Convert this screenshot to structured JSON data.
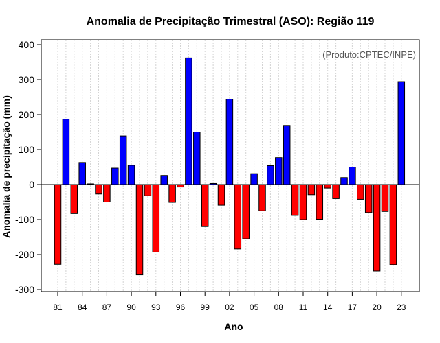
{
  "chart_data": {
    "type": "bar",
    "title": "Anomalia de Precipitação Trimestral (ASO): Região 119",
    "xlabel": "Ano",
    "ylabel": "Anomalia de precipitação (mm)",
    "annotation": "(Produto:CPTEC/INPE)",
    "ylim": [
      -310,
      415
    ],
    "yticks": [
      -300,
      -200,
      -100,
      0,
      100,
      200,
      300,
      400
    ],
    "xtick_labels": [
      "81",
      "84",
      "87",
      "90",
      "93",
      "96",
      "99",
      "02",
      "05",
      "08",
      "11",
      "14",
      "17",
      "20",
      "23"
    ],
    "positive_color": "#0000ff",
    "negative_color": "#ff0000",
    "categories": [
      1981,
      1982,
      1983,
      1984,
      1985,
      1986,
      1987,
      1988,
      1989,
      1990,
      1991,
      1992,
      1993,
      1994,
      1995,
      1996,
      1997,
      1998,
      1999,
      2000,
      2001,
      2002,
      2003,
      2004,
      2005,
      2006,
      2007,
      2008,
      2009,
      2010,
      2011,
      2012,
      2013,
      2014,
      2015,
      2016,
      2017,
      2018,
      2019,
      2020,
      2021,
      2022,
      2023
    ],
    "values": [
      -228,
      187,
      -83,
      63,
      2,
      -27,
      -50,
      47,
      139,
      55,
      -258,
      -32,
      -193,
      26,
      -51,
      -7,
      362,
      150,
      -120,
      3,
      -59,
      244,
      -184,
      -155,
      31,
      -75,
      54,
      77,
      169,
      -88,
      -100,
      -29,
      -99,
      -10,
      -40,
      20,
      50,
      -42,
      -80,
      -247,
      -77,
      -229,
      294
    ]
  }
}
